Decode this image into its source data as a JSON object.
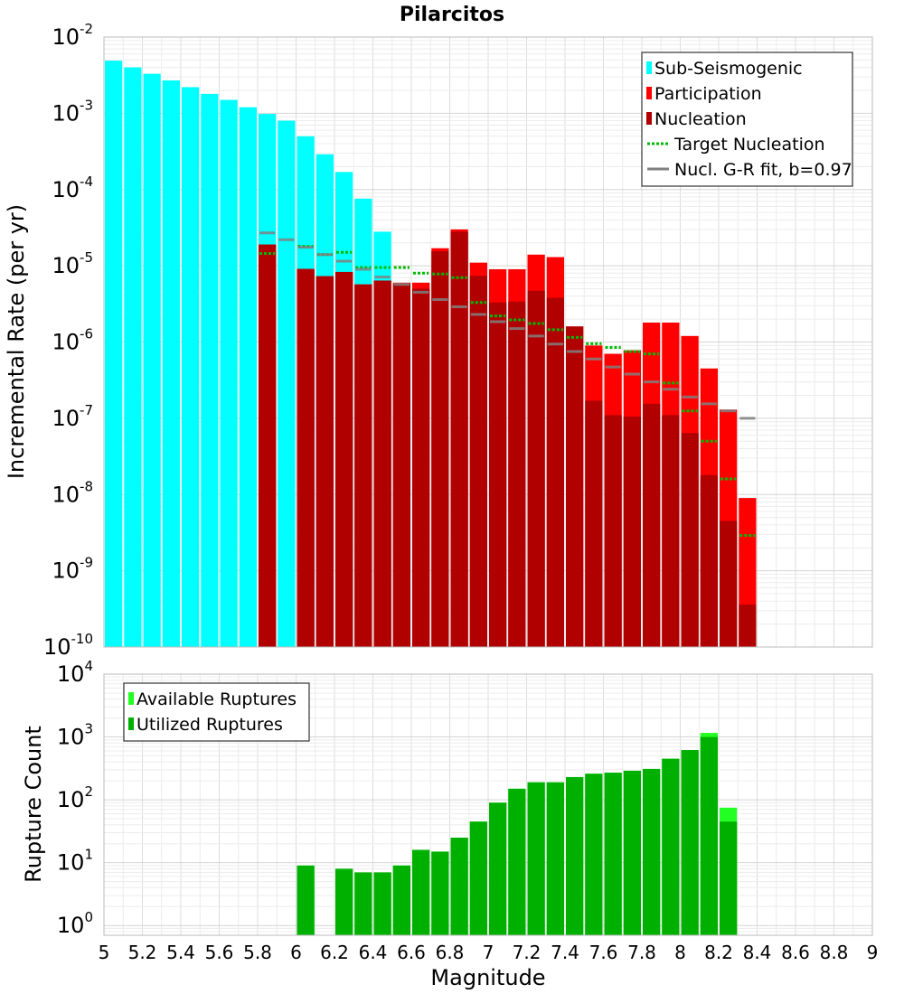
{
  "chart_data": [
    {
      "type": "bar",
      "title": "Pilarcitos",
      "xlabel": "",
      "ylabel": "Incremental Rate (per yr)",
      "yscale": "log",
      "xlim": [
        5,
        9
      ],
      "ylim": [
        1e-10,
        0.01
      ],
      "grid": true,
      "legend_position": "top-right",
      "x": [
        5.05,
        5.15,
        5.25,
        5.35,
        5.45,
        5.55,
        5.65,
        5.75,
        5.85,
        5.95,
        6.05,
        6.15,
        6.25,
        6.35,
        6.45,
        6.55,
        6.65,
        6.75,
        6.85,
        6.95,
        7.05,
        7.15,
        7.25,
        7.35,
        7.45,
        7.55,
        7.65,
        7.75,
        7.85,
        7.95,
        8.05,
        8.15,
        8.25,
        8.35
      ],
      "series": [
        {
          "name": "Sub-Seismogenic",
          "kind": "bar",
          "color": "#00ffff",
          "values": [
            0.0049,
            0.004,
            0.0033,
            0.0027,
            0.0022,
            0.0018,
            0.0015,
            0.0012,
            0.00098,
            0.0008,
            0.0005,
            0.00029,
            0.00017,
            7.6e-05,
            2.8e-05,
            null,
            null,
            null,
            null,
            null,
            null,
            null,
            null,
            null,
            null,
            null,
            null,
            null,
            null,
            null,
            null,
            null,
            null,
            null
          ]
        },
        {
          "name": "Participation",
          "kind": "bar",
          "color": "#ff0000",
          "values": [
            null,
            null,
            null,
            null,
            null,
            null,
            null,
            null,
            1.9e-05,
            null,
            9.1e-06,
            7.3e-06,
            8.3e-06,
            5.7e-06,
            6.4e-06,
            6e-06,
            6e-06,
            1.7e-05,
            3e-05,
            1.1e-05,
            9e-06,
            9e-06,
            1.4e-05,
            1.3e-05,
            1.6e-06,
            9e-07,
            7e-07,
            7.8e-07,
            1.8e-06,
            1.8e-06,
            1.2e-06,
            4.5e-07,
            1.3e-07,
            9e-09
          ]
        },
        {
          "name": "Nucleation",
          "kind": "bar",
          "color": "#b00000",
          "values": [
            null,
            null,
            null,
            null,
            null,
            null,
            null,
            null,
            1.9e-05,
            null,
            9.1e-06,
            7.3e-06,
            8.3e-06,
            5.7e-06,
            6.4e-06,
            5.8e-06,
            5e-06,
            1.55e-05,
            2.8e-05,
            7.4e-06,
            3.3e-06,
            3.4e-06,
            4.7e-06,
            3.8e-06,
            1.6e-06,
            1.7e-07,
            1.1e-07,
            1.05e-07,
            1.55e-07,
            1.1e-07,
            6.4e-08,
            1.8e-08,
            4.5e-09,
            3.6e-10
          ]
        },
        {
          "name": "Target Nucleation",
          "kind": "dotted-step",
          "color": "#00bb00",
          "values": [
            null,
            null,
            null,
            null,
            null,
            null,
            null,
            null,
            1.45e-05,
            null,
            1.8e-05,
            1.4e-05,
            1.5e-05,
            9.5e-06,
            9.5e-06,
            9.5e-06,
            8e-06,
            7.8e-06,
            7e-06,
            3.3e-06,
            2.2e-06,
            1.95e-06,
            1.75e-06,
            1.45e-06,
            1.15e-06,
            9.5e-07,
            8.5e-07,
            7.5e-07,
            7e-07,
            2.9e-07,
            1.25e-07,
            5e-08,
            1.6e-08,
            2.9e-09
          ]
        },
        {
          "name": "Nucl. G-R fit, b=0.97",
          "kind": "step",
          "color": "#808080",
          "values": [
            null,
            null,
            null,
            null,
            null,
            null,
            null,
            null,
            2.7e-05,
            2.2e-05,
            1.75e-05,
            1.4e-05,
            1.15e-05,
            9e-06,
            7.1e-06,
            5.7e-06,
            4.5e-06,
            3.6e-06,
            2.9e-06,
            2.3e-06,
            1.85e-06,
            1.5e-06,
            1.2e-06,
            9.4e-07,
            7.5e-07,
            6e-07,
            4.7e-07,
            3.8e-07,
            3e-07,
            2.4e-07,
            1.9e-07,
            1.55e-07,
            1.25e-07,
            1e-07
          ]
        }
      ]
    },
    {
      "type": "bar",
      "xlabel": "Magnitude",
      "ylabel": "Rupture Count",
      "yscale": "log",
      "xlim": [
        5,
        9
      ],
      "ylim": [
        0.7,
        10000
      ],
      "grid": true,
      "legend_position": "top-left",
      "x": [
        5.05,
        5.15,
        5.25,
        5.35,
        5.45,
        5.55,
        5.65,
        5.75,
        5.85,
        5.95,
        6.05,
        6.15,
        6.25,
        6.35,
        6.45,
        6.55,
        6.65,
        6.75,
        6.85,
        6.95,
        7.05,
        7.15,
        7.25,
        7.35,
        7.45,
        7.55,
        7.65,
        7.75,
        7.85,
        7.95,
        8.05,
        8.15,
        8.25,
        8.35
      ],
      "xticks": [
        "5",
        "5.2",
        "5.4",
        "5.6",
        "5.8",
        "6",
        "6.2",
        "6.4",
        "6.6",
        "6.8",
        "7",
        "7.2",
        "7.4",
        "7.6",
        "7.8",
        "8",
        "8.2",
        "8.4",
        "8.6",
        "8.8",
        "9"
      ],
      "series": [
        {
          "name": "Available Ruptures",
          "color": "#22ff22",
          "values": [
            null,
            null,
            null,
            null,
            null,
            null,
            null,
            null,
            null,
            null,
            9,
            null,
            8,
            7,
            7,
            9,
            16,
            15,
            25,
            45,
            90,
            150,
            190,
            190,
            230,
            260,
            270,
            290,
            310,
            450,
            620,
            1160,
            75,
            null
          ]
        },
        {
          "name": "Utilized Ruptures",
          "color": "#00b000",
          "values": [
            null,
            null,
            null,
            null,
            null,
            null,
            null,
            null,
            null,
            null,
            9,
            null,
            8,
            7,
            7,
            9,
            16,
            15,
            25,
            45,
            90,
            150,
            190,
            190,
            230,
            260,
            270,
            290,
            310,
            450,
            620,
            1000,
            45,
            null
          ]
        }
      ]
    }
  ]
}
